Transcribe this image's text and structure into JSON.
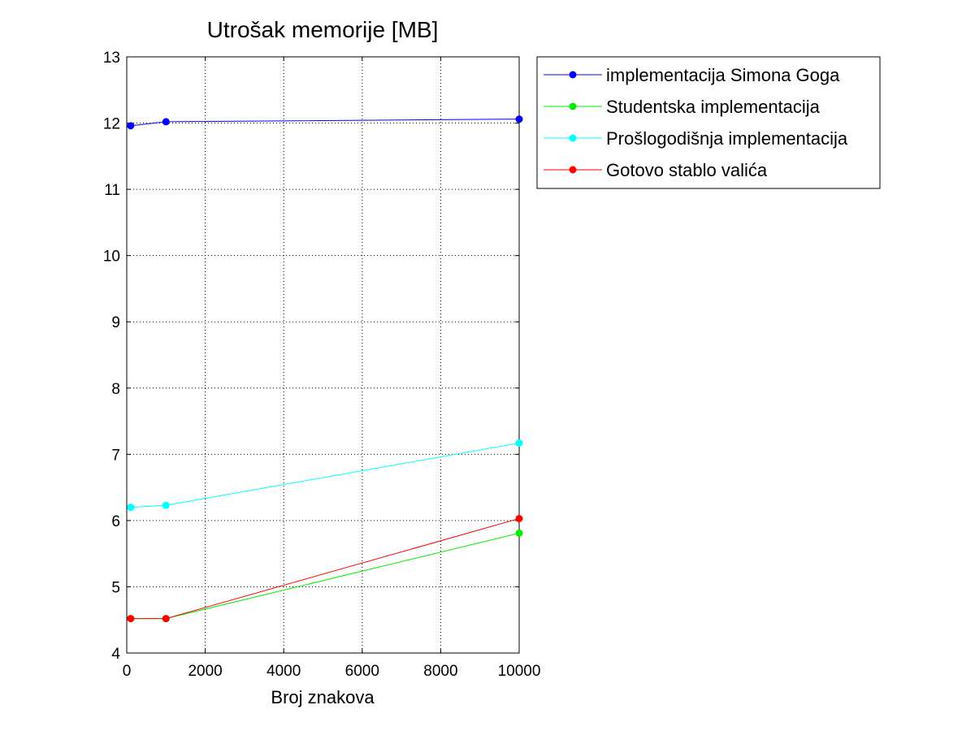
{
  "chart_data": {
    "type": "line",
    "title": "Utrošak memorije [MB]",
    "xlabel": "Broj znakova",
    "ylabel": "",
    "xlim": [
      0,
      10000
    ],
    "ylim": [
      4,
      13
    ],
    "xticks": [
      0,
      2000,
      4000,
      6000,
      8000,
      10000
    ],
    "yticks": [
      4,
      5,
      6,
      7,
      8,
      9,
      10,
      11,
      12,
      13
    ],
    "grid": true,
    "legend_position": "outside-top-right",
    "series": [
      {
        "name": "implementacija Simona Goga",
        "color": "#0000ff",
        "x": [
          100,
          1000,
          10000
        ],
        "y": [
          11.96,
          12.02,
          12.06
        ]
      },
      {
        "name": "Studentska implementacija",
        "color": "#00ee00",
        "x": [
          100,
          1000,
          10000
        ],
        "y": [
          4.52,
          4.52,
          5.81
        ]
      },
      {
        "name": "Prošlogodišnja implementacija",
        "color": "#00ffff",
        "x": [
          100,
          1000,
          10000
        ],
        "y": [
          6.2,
          6.23,
          7.17
        ]
      },
      {
        "name": "Gotovo stablo valića",
        "color": "#ff0000",
        "x": [
          100,
          1000,
          10000
        ],
        "y": [
          4.52,
          4.52,
          6.03
        ]
      }
    ]
  }
}
